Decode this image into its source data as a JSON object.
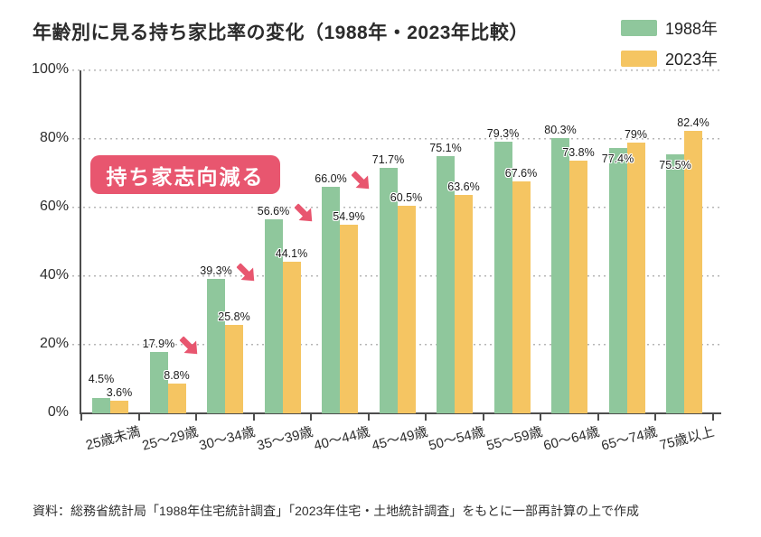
{
  "title": "年齢別に見る持ち家比率の変化（1988年・2023年比較）",
  "legend": [
    {
      "label": "1988年",
      "color": "#8FC79C"
    },
    {
      "label": "2023年",
      "color": "#F5C562"
    }
  ],
  "annotation": {
    "badge_label": "持ち家志向減る",
    "badge_color": "#E8566F",
    "arrow_color": "#E8566F",
    "arrow_symbol": "decline-arrow-down-right",
    "arrow_groups": [
      1,
      2,
      3,
      4
    ]
  },
  "source": "資料：総務省統計局「1988年住宅統計調査」「2023年住宅・土地統計調査」をもとに一部再計算の上で作成",
  "chart_data": {
    "type": "bar",
    "title": "年齢別に見る持ち家比率の変化（1988年・2023年比較）",
    "categories": [
      "25歳未満",
      "25～29歳",
      "30～34歳",
      "35～39歳",
      "40～44歳",
      "45～49歳",
      "50～54歳",
      "55～59歳",
      "60～64歳",
      "65～74歳",
      "75歳以上"
    ],
    "series": [
      {
        "name": "1988年",
        "color": "#8FC79C",
        "values": [
          4.5,
          17.9,
          39.3,
          56.6,
          66.0,
          71.7,
          75.1,
          79.3,
          80.3,
          77.4,
          75.5
        ]
      },
      {
        "name": "2023年",
        "color": "#F5C562",
        "values": [
          3.6,
          8.8,
          25.8,
          44.1,
          54.9,
          60.5,
          63.6,
          67.6,
          73.8,
          79,
          82.4
        ]
      }
    ],
    "value_labels": [
      [
        "4.5%",
        "17.9%",
        "39.3%",
        "56.6%",
        "66.0%",
        "71.7%",
        "75.1%",
        "79.3%",
        "80.3%",
        "77.4%",
        "75.5%"
      ],
      [
        "3.6%",
        "8.8%",
        "25.8%",
        "44.1%",
        "54.9%",
        "60.5%",
        "63.6%",
        "67.6%",
        "73.8%",
        "79%",
        "82.4%"
      ]
    ],
    "y_ticks": [
      "100%",
      "80%",
      "60%",
      "40%",
      "20%",
      "0%"
    ],
    "ylim": [
      0,
      100
    ],
    "xlabel": "",
    "ylabel": "",
    "grid": "horizontal-dotted",
    "legend_position": "top-right"
  }
}
